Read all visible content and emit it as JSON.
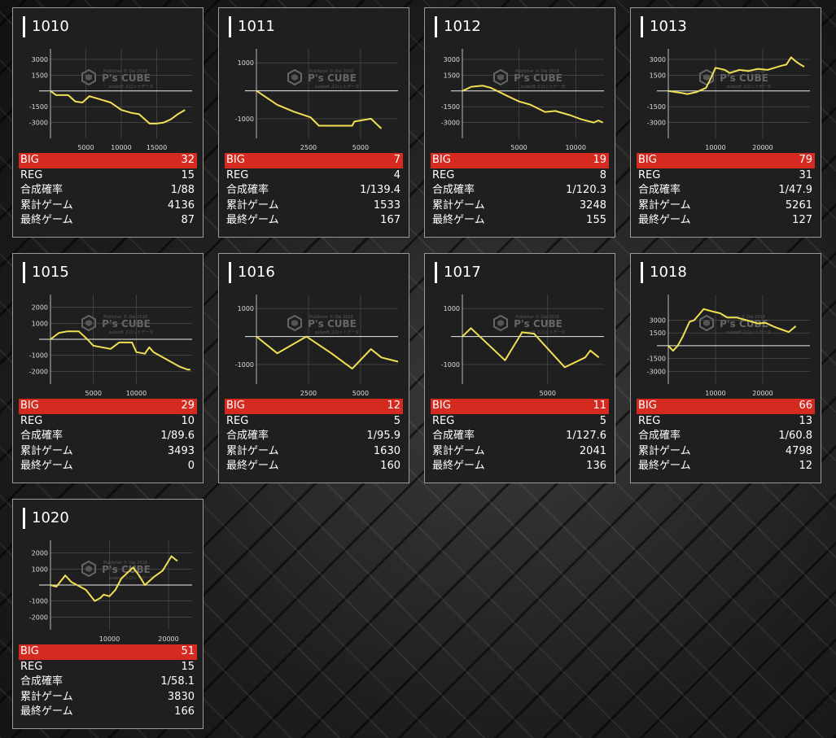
{
  "labels": {
    "big": "BIG",
    "reg": "REG",
    "rate": "合成確率",
    "total": "累計ゲーム",
    "last": "最終ゲーム"
  },
  "watermark": {
    "logo": "P's CUBE",
    "small_top": "Publisher © Dai 2018",
    "small_bottom": "sukeoft スロットデータ"
  },
  "colors": {
    "line": "#f1df54",
    "big_bar": "#d42a1f",
    "grid": "#555555"
  },
  "machines": [
    {
      "id": "1010",
      "big": "32",
      "reg": "15",
      "rate": "1/88",
      "total": "4136",
      "last": "87",
      "chart_data": {
        "type": "line",
        "xlim": [
          0,
          20000
        ],
        "ylim": [
          -4500,
          4000
        ],
        "yticks": [
          3000,
          1500,
          -1500,
          -3000
        ],
        "ytick_labels": [
          "3000",
          "1500",
          "-1500",
          "-3000"
        ],
        "xticks": [
          5000,
          10000,
          15000
        ],
        "xtick_labels": [
          "5000",
          "10000",
          "15000"
        ],
        "x": [
          0,
          800,
          2500,
          3500,
          4500,
          5500,
          7000,
          8500,
          10000,
          11500,
          12500,
          14000,
          15000,
          16000,
          17000,
          18000,
          19000
        ],
        "y": [
          0,
          -400,
          -400,
          -1000,
          -1100,
          -500,
          -800,
          -1100,
          -1800,
          -2100,
          -2200,
          -3100,
          -3100,
          -3000,
          -2700,
          -2200,
          -1800
        ]
      }
    },
    {
      "id": "1011",
      "big": "7",
      "reg": "4",
      "rate": "1/139.4",
      "total": "1533",
      "last": "167",
      "chart_data": {
        "type": "line",
        "xlim": [
          0,
          6800
        ],
        "ylim": [
          -1700,
          1500
        ],
        "yticks": [
          1000,
          -1000
        ],
        "ytick_labels": [
          "1000",
          "-1000"
        ],
        "xticks": [
          2500,
          5000
        ],
        "xtick_labels": [
          "2500",
          "5000"
        ],
        "x": [
          0,
          1000,
          1800,
          2600,
          3000,
          4600,
          4700,
          5500,
          6000
        ],
        "y": [
          0,
          -500,
          -750,
          -950,
          -1250,
          -1250,
          -1100,
          -1000,
          -1350
        ]
      }
    },
    {
      "id": "1012",
      "big": "19",
      "reg": "8",
      "rate": "1/120.3",
      "total": "3248",
      "last": "155",
      "chart_data": {
        "type": "line",
        "xlim": [
          0,
          12500
        ],
        "ylim": [
          -4500,
          4000
        ],
        "yticks": [
          3000,
          1500,
          -1500,
          -3000
        ],
        "ytick_labels": [
          "3000",
          "1500",
          "-1500",
          "-3000"
        ],
        "xticks": [
          5000,
          10000
        ],
        "xtick_labels": [
          "5000",
          "10000"
        ],
        "x": [
          0,
          800,
          1800,
          2500,
          4000,
          5000,
          6000,
          7300,
          8200,
          9500,
          10500,
          11600,
          12000,
          12400
        ],
        "y": [
          0,
          400,
          500,
          300,
          -500,
          -1000,
          -1300,
          -2000,
          -1900,
          -2300,
          -2700,
          -3000,
          -2800,
          -3000
        ]
      }
    },
    {
      "id": "1013",
      "big": "79",
      "reg": "31",
      "rate": "1/47.9",
      "total": "5261",
      "last": "127",
      "chart_data": {
        "type": "line",
        "xlim": [
          0,
          30000
        ],
        "ylim": [
          -4500,
          4000
        ],
        "yticks": [
          3000,
          1500,
          -1500,
          -3000
        ],
        "ytick_labels": [
          "3000",
          "1500",
          "-1500",
          "-3000"
        ],
        "xticks": [
          10000,
          20000
        ],
        "xtick_labels": [
          "10000",
          "20000"
        ],
        "x": [
          0,
          1500,
          3000,
          4000,
          6000,
          8000,
          9000,
          10000,
          12000,
          13000,
          15000,
          17000,
          19000,
          21000,
          22500,
          24000,
          25000,
          26000,
          27000,
          28000,
          28800
        ],
        "y": [
          0,
          -100,
          -200,
          -300,
          -100,
          300,
          1200,
          2200,
          2000,
          1700,
          2000,
          1900,
          2100,
          2000,
          2200,
          2400,
          2500,
          3200,
          2800,
          2500,
          2300
        ]
      }
    },
    {
      "id": "1015",
      "big": "29",
      "reg": "10",
      "rate": "1/89.6",
      "total": "3493",
      "last": "0",
      "chart_data": {
        "type": "line",
        "xlim": [
          0,
          16500
        ],
        "ylim": [
          -2800,
          2800
        ],
        "yticks": [
          2000,
          1000,
          -1000,
          -2000
        ],
        "ytick_labels": [
          "2000",
          "1000",
          "-1000",
          "-2000"
        ],
        "xticks": [
          5000,
          10000
        ],
        "xtick_labels": [
          "5000",
          "10000"
        ],
        "x": [
          0,
          1000,
          2000,
          3300,
          4300,
          5000,
          6000,
          7000,
          8000,
          9500,
          10000,
          11000,
          11500,
          12000,
          13000,
          14000,
          15000,
          16000,
          16300
        ],
        "y": [
          0,
          400,
          500,
          500,
          0,
          -400,
          -500,
          -600,
          -200,
          -200,
          -800,
          -900,
          -500,
          -800,
          -1100,
          -1400,
          -1700,
          -1900,
          -1900
        ]
      }
    },
    {
      "id": "1016",
      "big": "12",
      "reg": "5",
      "rate": "1/95.9",
      "total": "1630",
      "last": "160",
      "chart_data": {
        "type": "line",
        "xlim": [
          0,
          6800
        ],
        "ylim": [
          -1700,
          1500
        ],
        "yticks": [
          1000,
          -1000
        ],
        "ytick_labels": [
          "1000",
          "-1000"
        ],
        "xticks": [
          2500,
          5000
        ],
        "xtick_labels": [
          "2500",
          "5000"
        ],
        "x": [
          0,
          1000,
          2400,
          3600,
          4600,
          5500,
          6000,
          6800
        ],
        "y": [
          0,
          -600,
          0,
          -600,
          -1150,
          -450,
          -750,
          -900
        ]
      }
    },
    {
      "id": "1017",
      "big": "11",
      "reg": "5",
      "rate": "1/127.6",
      "total": "2041",
      "last": "136",
      "chart_data": {
        "type": "line",
        "xlim": [
          0,
          8300
        ],
        "ylim": [
          -1700,
          1500
        ],
        "yticks": [
          1000,
          -1000
        ],
        "ytick_labels": [
          "1000",
          "-1000"
        ],
        "xticks": [
          5000
        ],
        "xtick_labels": [
          "5000"
        ],
        "x": [
          0,
          500,
          2500,
          3500,
          4200,
          6000,
          7200,
          7500,
          8000
        ],
        "y": [
          0,
          300,
          -850,
          150,
          100,
          -1100,
          -750,
          -500,
          -750
        ]
      }
    },
    {
      "id": "1018",
      "big": "66",
      "reg": "13",
      "rate": "1/60.8",
      "total": "4798",
      "last": "12",
      "chart_data": {
        "type": "line",
        "xlim": [
          0,
          30000
        ],
        "ylim": [
          -4500,
          6000
        ],
        "yticks": [
          3000,
          1500,
          -1500,
          -3000
        ],
        "ytick_labels": [
          "3000",
          "1500",
          "-1500",
          "-3000"
        ],
        "xticks": [
          10000,
          20000
        ],
        "xtick_labels": [
          "10000",
          "20000"
        ],
        "x": [
          0,
          1000,
          2000,
          3000,
          4500,
          5500,
          7500,
          9500,
          11000,
          12500,
          14500,
          16500,
          19000,
          20500,
          22500,
          24000,
          25500,
          27000
        ],
        "y": [
          0,
          -600,
          0,
          1000,
          2800,
          3000,
          4300,
          4000,
          3800,
          3300,
          3300,
          3000,
          2600,
          2700,
          2200,
          1900,
          1600,
          2300
        ]
      }
    },
    {
      "id": "1020",
      "big": "51",
      "reg": "15",
      "rate": "1/58.1",
      "total": "3830",
      "last": "166",
      "chart_data": {
        "type": "line",
        "xlim": [
          0,
          24000
        ],
        "ylim": [
          -2800,
          2800
        ],
        "yticks": [
          2000,
          1000,
          -1000,
          -2000
        ],
        "ytick_labels": [
          "2000",
          "1000",
          "-1000",
          "-2000"
        ],
        "xticks": [
          10000,
          20000
        ],
        "xtick_labels": [
          "10000",
          "20000"
        ],
        "x": [
          0,
          1000,
          2500,
          3500,
          4500,
          6000,
          7500,
          8500,
          9000,
          10000,
          11000,
          12000,
          14000,
          15000,
          16000,
          17500,
          19000,
          20500,
          21500
        ],
        "y": [
          0,
          -100,
          600,
          200,
          0,
          -300,
          -1000,
          -800,
          -600,
          -700,
          -300,
          400,
          1100,
          600,
          0,
          500,
          900,
          1800,
          1500
        ]
      }
    }
  ]
}
